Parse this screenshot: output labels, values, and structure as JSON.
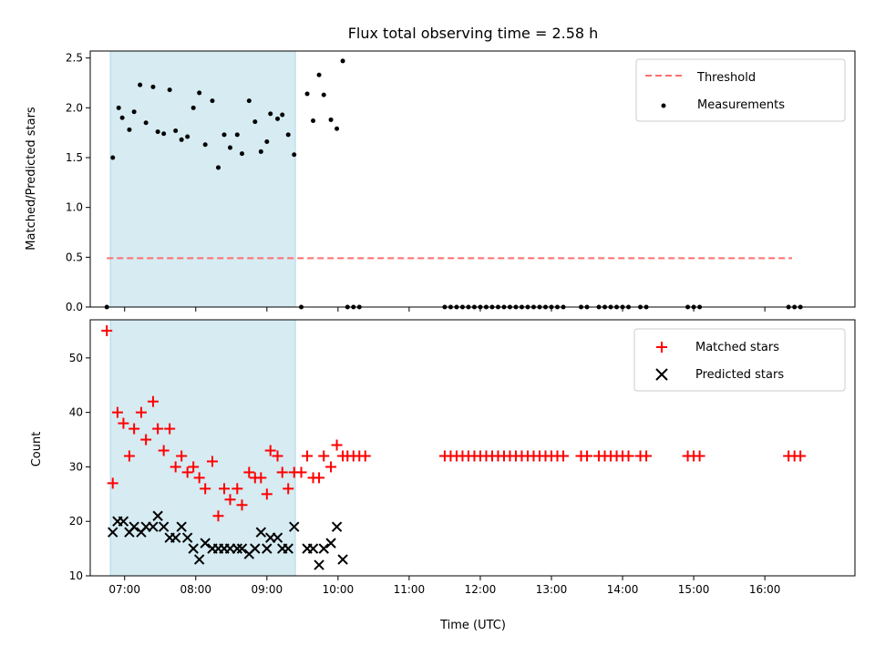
{
  "chart_data": {
    "title": "Flux total observing time = 2.58 h",
    "xlabel": "Time (UTC)",
    "x_ticks": [
      "07:00",
      "08:00",
      "09:00",
      "10:00",
      "11:00",
      "12:00",
      "13:00",
      "14:00",
      "15:00",
      "16:00"
    ],
    "xlim": [
      "06:31",
      "17:16"
    ],
    "shaded_interval": [
      "06:48",
      "09:24"
    ],
    "colors": {
      "shade": "#add8e6",
      "threshold": "#ff6f6f",
      "matched": "#ff0000",
      "predicted": "#000000",
      "measurement": "#000000"
    },
    "panels": [
      {
        "type": "scatter",
        "ylabel": "Matched/Predicted stars",
        "ylim": [
          0,
          2.57
        ],
        "y_ticks": [
          "0.0",
          "0.5",
          "1.0",
          "1.5",
          "2.0",
          "2.5"
        ],
        "legend": {
          "position": "top-right",
          "entries": [
            "Threshold",
            "Measurements"
          ]
        },
        "threshold": {
          "name": "Threshold",
          "value": 0.49,
          "x_range": [
            "06:45",
            "16:23"
          ]
        },
        "series": [
          {
            "name": "Measurements",
            "points": [
              [
                "06:45",
                0
              ],
              [
                "06:50",
                1.5
              ],
              [
                "06:55",
                2.0
              ],
              [
                "06:58",
                1.9
              ],
              [
                "07:04",
                1.78
              ],
              [
                "07:08",
                1.96
              ],
              [
                "07:13",
                2.23
              ],
              [
                "07:18",
                1.85
              ],
              [
                "07:24",
                2.21
              ],
              [
                "07:28",
                1.76
              ],
              [
                "07:33",
                1.74
              ],
              [
                "07:38",
                2.18
              ],
              [
                "07:43",
                1.77
              ],
              [
                "07:48",
                1.68
              ],
              [
                "07:53",
                1.71
              ],
              [
                "07:58",
                2.0
              ],
              [
                "08:03",
                2.15
              ],
              [
                "08:08",
                1.63
              ],
              [
                "08:14",
                2.07
              ],
              [
                "08:19",
                1.4
              ],
              [
                "08:24",
                1.73
              ],
              [
                "08:29",
                1.6
              ],
              [
                "08:35",
                1.73
              ],
              [
                "08:39",
                1.54
              ],
              [
                "08:45",
                2.07
              ],
              [
                "08:50",
                1.86
              ],
              [
                "08:55",
                1.56
              ],
              [
                "09:00",
                1.66
              ],
              [
                "09:03",
                1.94
              ],
              [
                "09:09",
                1.89
              ],
              [
                "09:13",
                1.93
              ],
              [
                "09:18",
                1.73
              ],
              [
                "09:23",
                1.53
              ],
              [
                "09:29",
                0
              ],
              [
                "09:34",
                2.14
              ],
              [
                "09:39",
                1.87
              ],
              [
                "09:44",
                2.33
              ],
              [
                "09:48",
                2.13
              ],
              [
                "09:54",
                1.88
              ],
              [
                "09:59",
                1.79
              ],
              [
                "10:04",
                2.47
              ],
              [
                "10:08",
                0
              ],
              [
                "10:13",
                0
              ],
              [
                "10:18",
                0
              ],
              [
                "11:30",
                0
              ],
              [
                "11:35",
                0
              ],
              [
                "11:40",
                0
              ],
              [
                "11:45",
                0
              ],
              [
                "11:50",
                0
              ],
              [
                "11:55",
                0
              ],
              [
                "12:00",
                0
              ],
              [
                "12:05",
                0
              ],
              [
                "12:10",
                0
              ],
              [
                "12:15",
                0
              ],
              [
                "12:20",
                0
              ],
              [
                "12:25",
                0
              ],
              [
                "12:30",
                0
              ],
              [
                "12:35",
                0
              ],
              [
                "12:40",
                0
              ],
              [
                "12:45",
                0
              ],
              [
                "12:50",
                0
              ],
              [
                "12:55",
                0
              ],
              [
                "13:00",
                0
              ],
              [
                "13:05",
                0
              ],
              [
                "13:10",
                0
              ],
              [
                "13:25",
                0
              ],
              [
                "13:30",
                0
              ],
              [
                "13:40",
                0
              ],
              [
                "13:45",
                0
              ],
              [
                "13:50",
                0
              ],
              [
                "13:55",
                0
              ],
              [
                "14:00",
                0
              ],
              [
                "14:05",
                0
              ],
              [
                "14:15",
                0
              ],
              [
                "14:20",
                0
              ],
              [
                "14:55",
                0
              ],
              [
                "15:00",
                0
              ],
              [
                "15:05",
                0
              ],
              [
                "16:20",
                0
              ],
              [
                "16:25",
                0
              ],
              [
                "16:30",
                0
              ]
            ]
          }
        ]
      },
      {
        "type": "scatter",
        "ylabel": "Count",
        "ylim": [
          10,
          57
        ],
        "y_ticks": [
          "10",
          "20",
          "30",
          "40",
          "50"
        ],
        "legend": {
          "position": "top-right",
          "entries": [
            "Matched stars",
            "Predicted stars"
          ]
        },
        "series": [
          {
            "name": "Matched stars",
            "marker": "plus",
            "points": [
              [
                "06:45",
                55
              ],
              [
                "06:50",
                27
              ],
              [
                "06:54",
                40
              ],
              [
                "06:59",
                38
              ],
              [
                "07:04",
                32
              ],
              [
                "07:08",
                37
              ],
              [
                "07:14",
                40
              ],
              [
                "07:18",
                35
              ],
              [
                "07:24",
                42
              ],
              [
                "07:28",
                37
              ],
              [
                "07:33",
                33
              ],
              [
                "07:38",
                37
              ],
              [
                "07:43",
                30
              ],
              [
                "07:48",
                32
              ],
              [
                "07:53",
                29
              ],
              [
                "07:58",
                30
              ],
              [
                "08:03",
                28
              ],
              [
                "08:08",
                26
              ],
              [
                "08:14",
                31
              ],
              [
                "08:19",
                21
              ],
              [
                "08:24",
                26
              ],
              [
                "08:29",
                24
              ],
              [
                "08:35",
                26
              ],
              [
                "08:39",
                23
              ],
              [
                "08:45",
                29
              ],
              [
                "08:50",
                28
              ],
              [
                "08:55",
                28
              ],
              [
                "09:00",
                25
              ],
              [
                "09:03",
                33
              ],
              [
                "09:09",
                32
              ],
              [
                "09:13",
                29
              ],
              [
                "09:18",
                26
              ],
              [
                "09:23",
                29
              ],
              [
                "09:29",
                29
              ],
              [
                "09:34",
                32
              ],
              [
                "09:39",
                28
              ],
              [
                "09:44",
                28
              ],
              [
                "09:48",
                32
              ],
              [
                "09:54",
                30
              ],
              [
                "09:59",
                34
              ],
              [
                "10:04",
                32
              ],
              [
                "10:08",
                32
              ],
              [
                "10:13",
                32
              ],
              [
                "10:18",
                32
              ],
              [
                "10:23",
                32
              ],
              [
                "11:30",
                32
              ],
              [
                "11:35",
                32
              ],
              [
                "11:40",
                32
              ],
              [
                "11:45",
                32
              ],
              [
                "11:50",
                32
              ],
              [
                "11:55",
                32
              ],
              [
                "12:00",
                32
              ],
              [
                "12:05",
                32
              ],
              [
                "12:10",
                32
              ],
              [
                "12:15",
                32
              ],
              [
                "12:20",
                32
              ],
              [
                "12:25",
                32
              ],
              [
                "12:30",
                32
              ],
              [
                "12:35",
                32
              ],
              [
                "12:40",
                32
              ],
              [
                "12:45",
                32
              ],
              [
                "12:50",
                32
              ],
              [
                "12:55",
                32
              ],
              [
                "13:00",
                32
              ],
              [
                "13:05",
                32
              ],
              [
                "13:10",
                32
              ],
              [
                "13:25",
                32
              ],
              [
                "13:30",
                32
              ],
              [
                "13:40",
                32
              ],
              [
                "13:45",
                32
              ],
              [
                "13:50",
                32
              ],
              [
                "13:55",
                32
              ],
              [
                "14:00",
                32
              ],
              [
                "14:05",
                32
              ],
              [
                "14:15",
                32
              ],
              [
                "14:20",
                32
              ],
              [
                "14:55",
                32
              ],
              [
                "15:00",
                32
              ],
              [
                "15:05",
                32
              ],
              [
                "16:20",
                32
              ],
              [
                "16:25",
                32
              ],
              [
                "16:30",
                32
              ]
            ]
          },
          {
            "name": "Predicted stars",
            "marker": "x",
            "points": [
              [
                "06:50",
                18
              ],
              [
                "06:54",
                20
              ],
              [
                "06:59",
                20
              ],
              [
                "07:04",
                18
              ],
              [
                "07:08",
                19
              ],
              [
                "07:14",
                18
              ],
              [
                "07:18",
                19
              ],
              [
                "07:24",
                19
              ],
              [
                "07:28",
                21
              ],
              [
                "07:33",
                19
              ],
              [
                "07:38",
                17
              ],
              [
                "07:43",
                17
              ],
              [
                "07:48",
                19
              ],
              [
                "07:53",
                17
              ],
              [
                "07:58",
                15
              ],
              [
                "08:03",
                13
              ],
              [
                "08:08",
                16
              ],
              [
                "08:14",
                15
              ],
              [
                "08:19",
                15
              ],
              [
                "08:24",
                15
              ],
              [
                "08:29",
                15
              ],
              [
                "08:35",
                15
              ],
              [
                "08:39",
                15
              ],
              [
                "08:45",
                14
              ],
              [
                "08:50",
                15
              ],
              [
                "08:55",
                18
              ],
              [
                "09:00",
                15
              ],
              [
                "09:03",
                17
              ],
              [
                "09:09",
                17
              ],
              [
                "09:13",
                15
              ],
              [
                "09:18",
                15
              ],
              [
                "09:23",
                19
              ],
              [
                "09:34",
                15
              ],
              [
                "09:39",
                15
              ],
              [
                "09:44",
                12
              ],
              [
                "09:48",
                15
              ],
              [
                "09:54",
                16
              ],
              [
                "09:59",
                19
              ],
              [
                "10:04",
                13
              ]
            ]
          }
        ]
      }
    ]
  }
}
